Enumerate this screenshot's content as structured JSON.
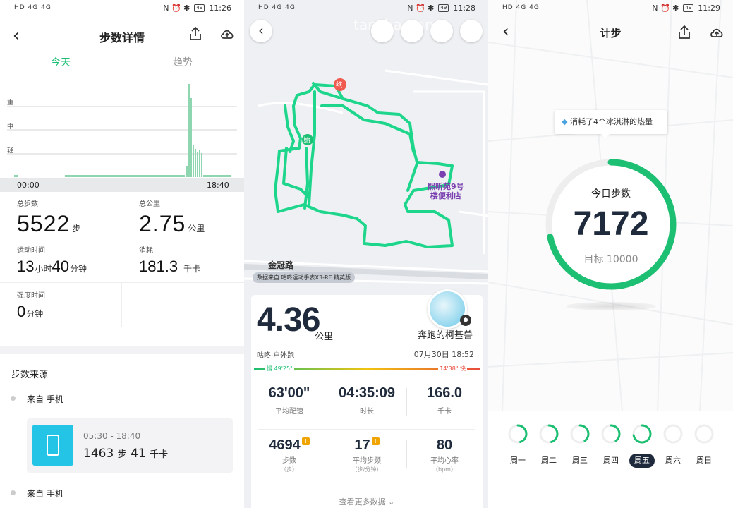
{
  "colors": {
    "accent": "#1dbf73",
    "dark": "#1f2b3c",
    "poi": "#7a3fb0"
  },
  "panel1": {
    "status": {
      "left": "HD 4G 4G",
      "right": "N ⏰ ✱",
      "battery": "49",
      "time": "11:26"
    },
    "title": "步数详情",
    "tabs": [
      {
        "label": "今天"
      },
      {
        "label": "趋势"
      }
    ],
    "chart": {
      "ylabels": [
        "重",
        "中",
        "轻"
      ],
      "start": "00:00",
      "end": "18:40"
    },
    "stats": {
      "steps": {
        "label": "总步数",
        "value": "5522",
        "unit": "步"
      },
      "distance": {
        "label": "总公里",
        "value": "2.75",
        "unit": "公里"
      },
      "duration": {
        "label": "运动时间",
        "h": "13",
        "hu": "小时",
        "m": "40",
        "mu": "分钟"
      },
      "calories": {
        "label": "消耗",
        "value": "181.3",
        "unit": "千卡"
      },
      "intensity": {
        "label": "强度时间",
        "value": "0",
        "unit": "分钟"
      }
    },
    "source": {
      "title": "步数来源",
      "items": [
        {
          "label": "来自 手机"
        },
        {
          "label": "来自 手机"
        }
      ],
      "card": {
        "time": "05:30 - 18:40",
        "steps": "1463",
        "steps_unit": "步",
        "kcal": "41",
        "kcal_unit": "千卡"
      }
    }
  },
  "panel2": {
    "status": {
      "left": "HD 4G 4G",
      "right": "N ⏰ ✱",
      "battery": "49",
      "time": "11:28"
    },
    "watermark": "tanchaotang",
    "map": {
      "road": "金冠路",
      "poi_line1": "熙昕苑9号",
      "poi_line2": "楼便利店",
      "start": "始",
      "end": "终"
    },
    "source_pill": "数据来自 咕咚运动手表X3-RE 精英版",
    "summary": {
      "distance": "4.36",
      "distance_unit": "公里",
      "username": "奔跑的柯基兽",
      "sport": "咕咚·户外跑",
      "date": "07月30日 18:52",
      "pace_slow": "慢 49'25\"",
      "pace_fast": "14'38\" 快"
    },
    "metrics": [
      {
        "value": "63'00\"",
        "label": "平均配速",
        "sub": ""
      },
      {
        "value": "04:35:09",
        "label": "时长",
        "sub": ""
      },
      {
        "value": "166.0",
        "label": "千卡",
        "sub": ""
      },
      {
        "value": "4694",
        "label": "步数",
        "sub": "（步）"
      },
      {
        "value": "17",
        "label": "平均步频",
        "sub": "（步/分钟）"
      },
      {
        "value": "80",
        "label": "平均心率",
        "sub": "（bpm）"
      }
    ],
    "more": "查看更多数据 ⌄"
  },
  "panel3": {
    "status": {
      "left": "HD 4G 4G",
      "right": "N ⏰ ✱",
      "battery": "49",
      "time": "11:29"
    },
    "title": "计步",
    "tip": "消耗了4个冰淇淋的热量",
    "ring": {
      "label": "今日步数",
      "value": "7172",
      "goal": "目标 10000",
      "progress": 0.7172
    },
    "week": [
      {
        "label": "周一",
        "progress": 0.45,
        "selected": false
      },
      {
        "label": "周二",
        "progress": 0.45,
        "selected": false
      },
      {
        "label": "周三",
        "progress": 0.4,
        "selected": false
      },
      {
        "label": "周四",
        "progress": 0.4,
        "selected": false
      },
      {
        "label": "周五",
        "progress": 0.72,
        "selected": true
      },
      {
        "label": "周六",
        "progress": 0,
        "selected": false
      },
      {
        "label": "周日",
        "progress": 0,
        "selected": false
      }
    ]
  }
}
